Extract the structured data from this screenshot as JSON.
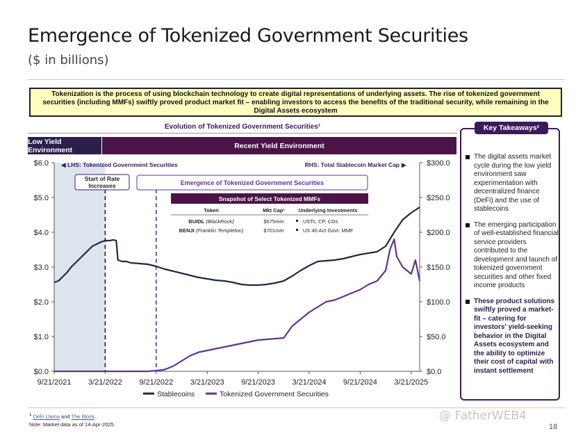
{
  "header": {
    "title": "Emergence of Tokenized Government Securities",
    "subtitle": "($ in billions)"
  },
  "callout": {
    "text": "Tokenization is the process of using blockchain technology to create digital representations of underlying assets. The rise of tokenized government securities (including MMFs) swiftly proved product market fit – enabling investors to access the benefits of the traditional security, while remaining in the Digital Assets ecosystem"
  },
  "chart_data": {
    "type": "line",
    "title": "Evolution of Tokenized Government Securities¹",
    "environments": {
      "low": "Low Yield Environment",
      "recent": "Recent Yield Environment"
    },
    "lhs_label": "LHS: Tokenized Government Securities",
    "rhs_label": "RHS: Total Stablecoin Market Cap",
    "y_left": {
      "ticks": [
        "$0.0",
        "$1.0",
        "$2.0",
        "$3.0",
        "$4.0",
        "$5.0",
        "$6.0"
      ],
      "range": [
        0,
        6
      ]
    },
    "y_right": {
      "ticks": [
        "$0.0",
        "$50.0",
        "$100.0",
        "$150.0",
        "$200.0",
        "$250.0",
        "$300.0"
      ],
      "range": [
        0,
        300
      ]
    },
    "x_ticks": [
      "9/21/2021",
      "3/21/2022",
      "9/21/2022",
      "3/21/2023",
      "9/21/2023",
      "3/21/2024",
      "9/21/2024",
      "3/21/2025"
    ],
    "x_range": [
      0,
      43
    ],
    "low_yield_end": 6,
    "markers": [
      {
        "label_lines": [
          "Start of Rate",
          "Increases"
        ],
        "x": 6
      },
      {
        "label": "Emergence of Tokenized Government Securities",
        "x": 12
      }
    ],
    "series": [
      {
        "name": "Stablecoins",
        "axis": "right",
        "color": "#1c2b40",
        "points": [
          [
            0,
            128
          ],
          [
            0.5,
            130
          ],
          [
            1,
            136
          ],
          [
            1.5,
            142
          ],
          [
            2,
            150
          ],
          [
            2.5,
            156
          ],
          [
            3,
            162
          ],
          [
            3.5,
            168
          ],
          [
            4,
            174
          ],
          [
            4.5,
            180
          ],
          [
            5,
            183
          ],
          [
            5.5,
            186
          ],
          [
            6,
            188
          ],
          [
            6.5,
            188
          ],
          [
            7,
            189
          ],
          [
            7.3,
            188
          ],
          [
            7.5,
            160
          ],
          [
            8,
            158
          ],
          [
            8.5,
            158
          ],
          [
            9,
            156
          ],
          [
            10,
            155
          ],
          [
            11,
            154
          ],
          [
            12,
            151
          ],
          [
            13,
            147
          ],
          [
            14,
            144
          ],
          [
            15,
            141
          ],
          [
            16,
            138
          ],
          [
            17,
            135
          ],
          [
            18,
            133
          ],
          [
            19,
            131
          ],
          [
            20,
            130
          ],
          [
            21,
            128
          ],
          [
            22,
            125
          ],
          [
            23,
            124
          ],
          [
            24,
            124
          ],
          [
            25,
            125
          ],
          [
            26,
            127
          ],
          [
            27,
            130
          ],
          [
            28,
            137
          ],
          [
            29,
            145
          ],
          [
            30,
            152
          ],
          [
            31,
            158
          ],
          [
            32,
            159
          ],
          [
            33,
            160
          ],
          [
            34,
            162
          ],
          [
            35,
            165
          ],
          [
            36,
            168
          ],
          [
            37,
            170
          ],
          [
            38,
            172
          ],
          [
            39,
            180
          ],
          [
            40,
            200
          ],
          [
            41,
            218
          ],
          [
            42,
            228
          ],
          [
            43,
            236
          ]
        ]
      },
      {
        "name": "Tokenized Government Securities",
        "axis": "left",
        "color": "#5b3691",
        "points": [
          [
            0,
            0
          ],
          [
            11,
            0
          ],
          [
            12,
            0.02
          ],
          [
            13,
            0.05
          ],
          [
            14,
            0.15
          ],
          [
            15,
            0.3
          ],
          [
            16,
            0.45
          ],
          [
            17,
            0.55
          ],
          [
            18,
            0.6
          ],
          [
            19,
            0.65
          ],
          [
            20,
            0.7
          ],
          [
            21,
            0.75
          ],
          [
            22,
            0.8
          ],
          [
            23,
            0.85
          ],
          [
            24,
            0.9
          ],
          [
            25,
            0.92
          ],
          [
            26,
            0.94
          ],
          [
            27,
            0.96
          ],
          [
            28,
            1.3
          ],
          [
            29,
            1.5
          ],
          [
            30,
            1.7
          ],
          [
            31,
            1.85
          ],
          [
            32,
            2.0
          ],
          [
            33,
            2.05
          ],
          [
            34,
            2.15
          ],
          [
            35,
            2.25
          ],
          [
            36,
            2.35
          ],
          [
            37,
            2.5
          ],
          [
            38,
            2.6
          ],
          [
            39,
            2.9
          ],
          [
            39.5,
            3.5
          ],
          [
            40,
            3.8
          ],
          [
            40.3,
            3.3
          ],
          [
            41,
            3.0
          ],
          [
            42,
            2.8
          ],
          [
            42.5,
            3.2
          ],
          [
            43,
            2.6
          ]
        ]
      }
    ],
    "snapshot": {
      "title": "Snapshot of Select Tokenized MMFs",
      "headers": [
        "Token",
        "Mkt Cap¹",
        "Underlying Investments"
      ],
      "rows": [
        {
          "token": "BUIDL",
          "issuer": "(BlackRock)",
          "mkt_cap": "$675mm",
          "underlying": "USTs, CP, CDs"
        },
        {
          "token": "BENJI",
          "issuer": "(Franklin Templeton)",
          "mkt_cap": "$701mm",
          "underlying": "US 40 Act Govt. MMF"
        }
      ]
    },
    "legend": [
      "Stablecoins",
      "Tokenized Government Securities"
    ]
  },
  "takeaways": {
    "header": "Key Takeaways²",
    "items": [
      {
        "text": "The digital assets market cycle during the low yield environment saw experimentation with decentralized finance (DeFi) and the use of stablecoins",
        "bold": false
      },
      {
        "text": "The emerging participation of well-established financial service providers contributed to the development and launch of tokenized government securities and other fixed income products",
        "bold": false
      },
      {
        "text": "These product solutions swiftly proved a market-fit – catering for investors' yield-seeking behavior in the Digital Assets ecosystem and the ability to optimize their cost of capital with instant settlement",
        "bold": true
      }
    ]
  },
  "footer": {
    "footnote_mark": "1",
    "source_a": "DeFi Llama",
    "and_text": "and",
    "source_b": "The Block",
    "source_end": ".",
    "note": "Note: Market data as of 14-Apr-2025.",
    "page": "18",
    "watermark": "@ FatherWEB4"
  },
  "colors": {
    "dark_navy": "#2a1f49",
    "plum": "#4a1446",
    "purple": "#5b3691",
    "callout_bg": "#ffffc0"
  }
}
